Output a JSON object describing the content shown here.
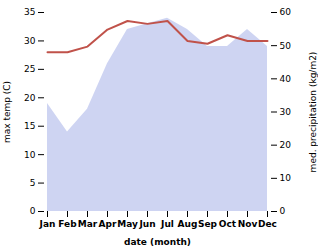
{
  "chart_data": {
    "type": "line",
    "categories": [
      "Jan",
      "Feb",
      "Mar",
      "Apr",
      "May",
      "Jun",
      "Jul",
      "Aug",
      "Sep",
      "Oct",
      "Nov",
      "Dec"
    ],
    "series": [
      {
        "type": "area",
        "color": "#c5cdf0",
        "values": [
          19,
          14,
          18,
          26,
          32,
          33,
          34,
          32,
          29,
          29,
          32,
          29
        ]
      },
      {
        "type": "line",
        "color": "#c0524a",
        "values": [
          28,
          28,
          29,
          32,
          33.5,
          33,
          33.5,
          30,
          29.5,
          31,
          30,
          30
        ]
      }
    ],
    "xlabel": "date (month)",
    "ylabel": "max temp (C)",
    "y2label": "med. precipitation (kg/m2)",
    "ylim": [
      0,
      35
    ],
    "yticks": [
      0,
      5,
      10,
      15,
      20,
      25,
      30,
      35
    ],
    "y2lim": [
      0,
      60
    ],
    "y2ticks": [
      0,
      10,
      20,
      30,
      40,
      50,
      60
    ],
    "grid": false
  }
}
